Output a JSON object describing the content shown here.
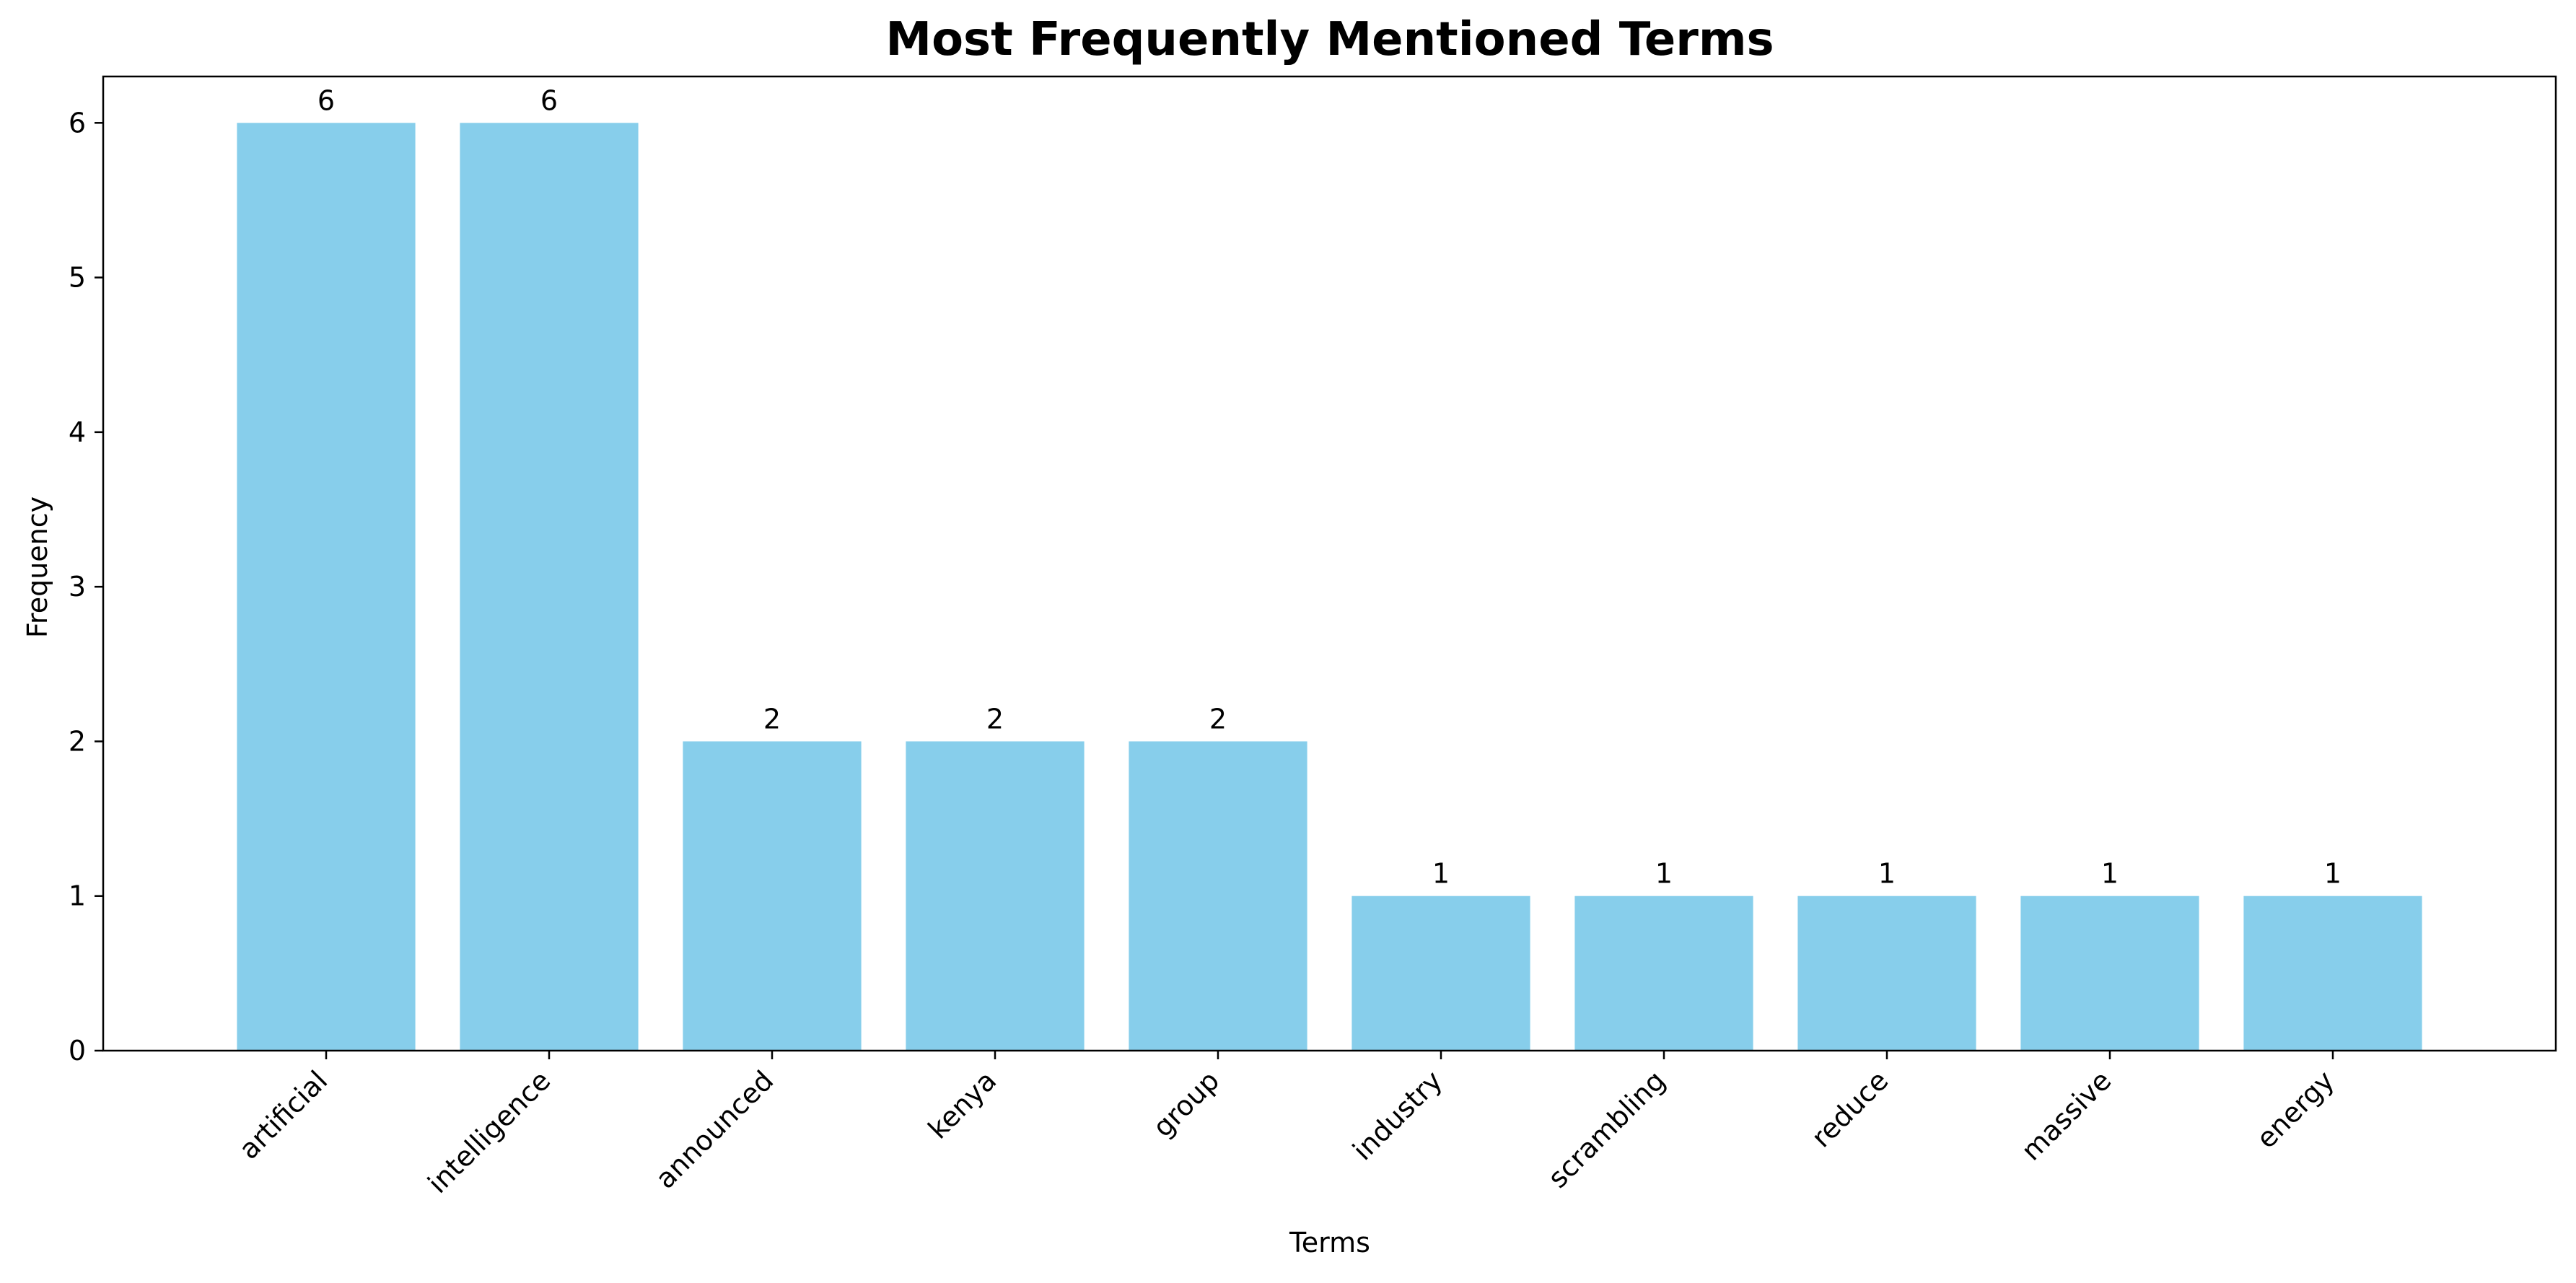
{
  "chart_data": {
    "type": "bar",
    "title": "Most Frequently Mentioned Terms",
    "xlabel": "Terms",
    "ylabel": "Frequency",
    "categories": [
      "artificial",
      "intelligence",
      "announced",
      "kenya",
      "group",
      "industry",
      "scrambling",
      "reduce",
      "massive",
      "energy"
    ],
    "values": [
      6,
      6,
      2,
      2,
      2,
      1,
      1,
      1,
      1,
      1
    ],
    "data_labels": [
      "6",
      "6",
      "2",
      "2",
      "2",
      "1",
      "1",
      "1",
      "1",
      "1"
    ],
    "ylim": [
      0,
      6.3
    ],
    "yticks": [
      0,
      1,
      2,
      3,
      4,
      5,
      6
    ],
    "ytick_labels": [
      "0",
      "1",
      "2",
      "3",
      "4",
      "5",
      "6"
    ],
    "grid": false,
    "legend": "none",
    "bar_color": "#87CEEB",
    "x_tick_rotation": -45
  }
}
